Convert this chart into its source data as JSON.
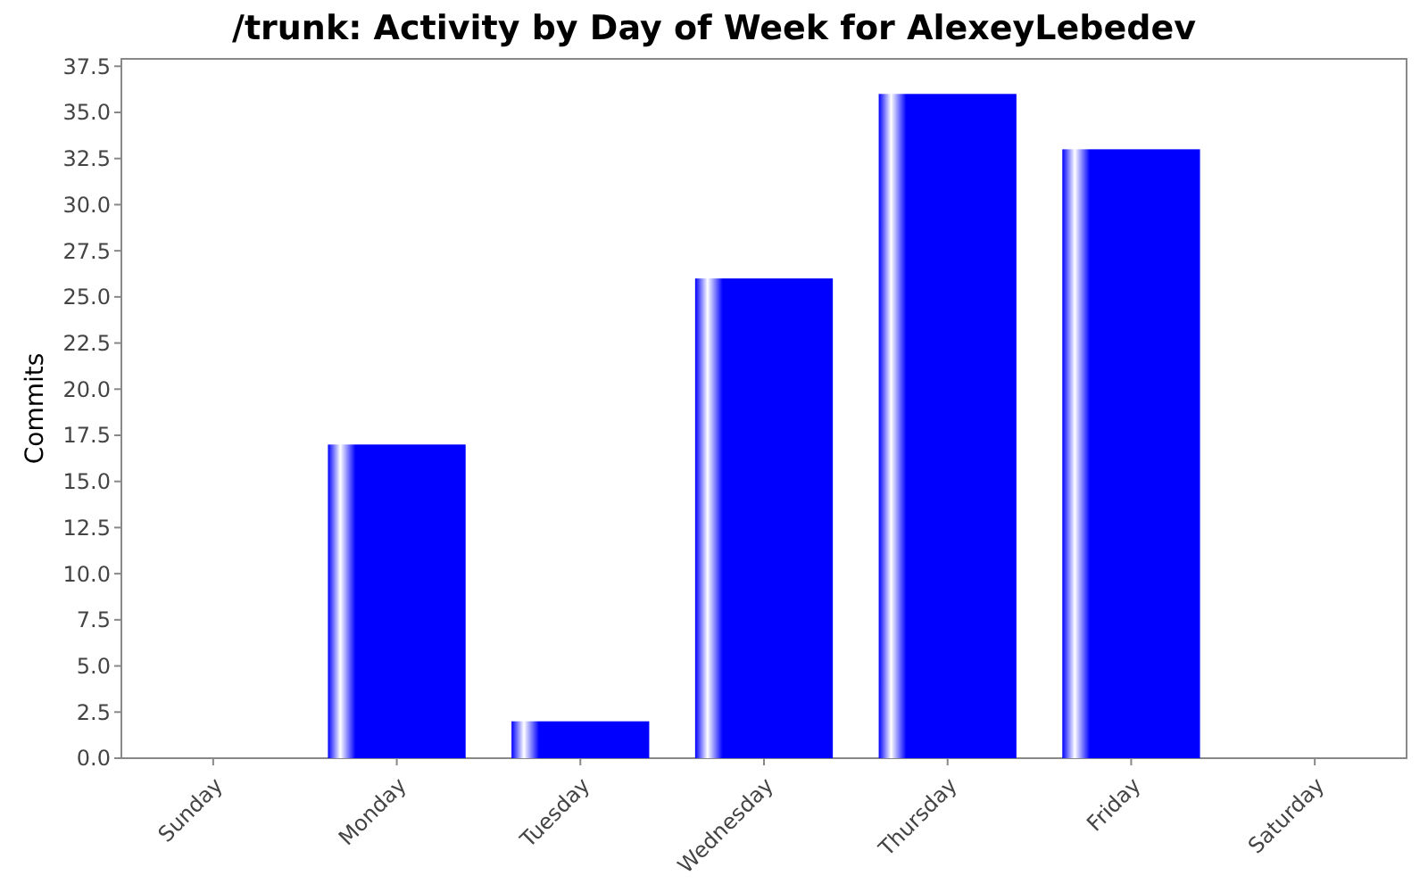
{
  "chart_data": {
    "type": "bar",
    "title": "/trunk: Activity by Day of Week for AlexeyLebedev",
    "ylabel": "Commits",
    "categories": [
      "Sunday",
      "Monday",
      "Tuesday",
      "Wednesday",
      "Thursday",
      "Friday",
      "Saturday"
    ],
    "values": [
      0,
      17,
      2,
      26,
      36,
      33,
      0
    ],
    "color": "#0000ff",
    "ylim": [
      0,
      37.9
    ],
    "yticks": [
      {
        "value": 0,
        "label": "0.0"
      },
      2.5,
      {
        "value": 5,
        "label": "5.0"
      },
      7.5,
      {
        "value": 10,
        "label": "10.0"
      },
      12.5,
      {
        "value": 15,
        "label": "15.0"
      },
      17.5,
      {
        "value": 20,
        "label": "20.0"
      },
      22.5,
      {
        "value": 25,
        "label": "25.0"
      },
      27.5,
      {
        "value": 30,
        "label": "30.0"
      },
      32.5,
      {
        "value": 35,
        "label": "35.0"
      },
      37.5
    ],
    "grid": false
  }
}
